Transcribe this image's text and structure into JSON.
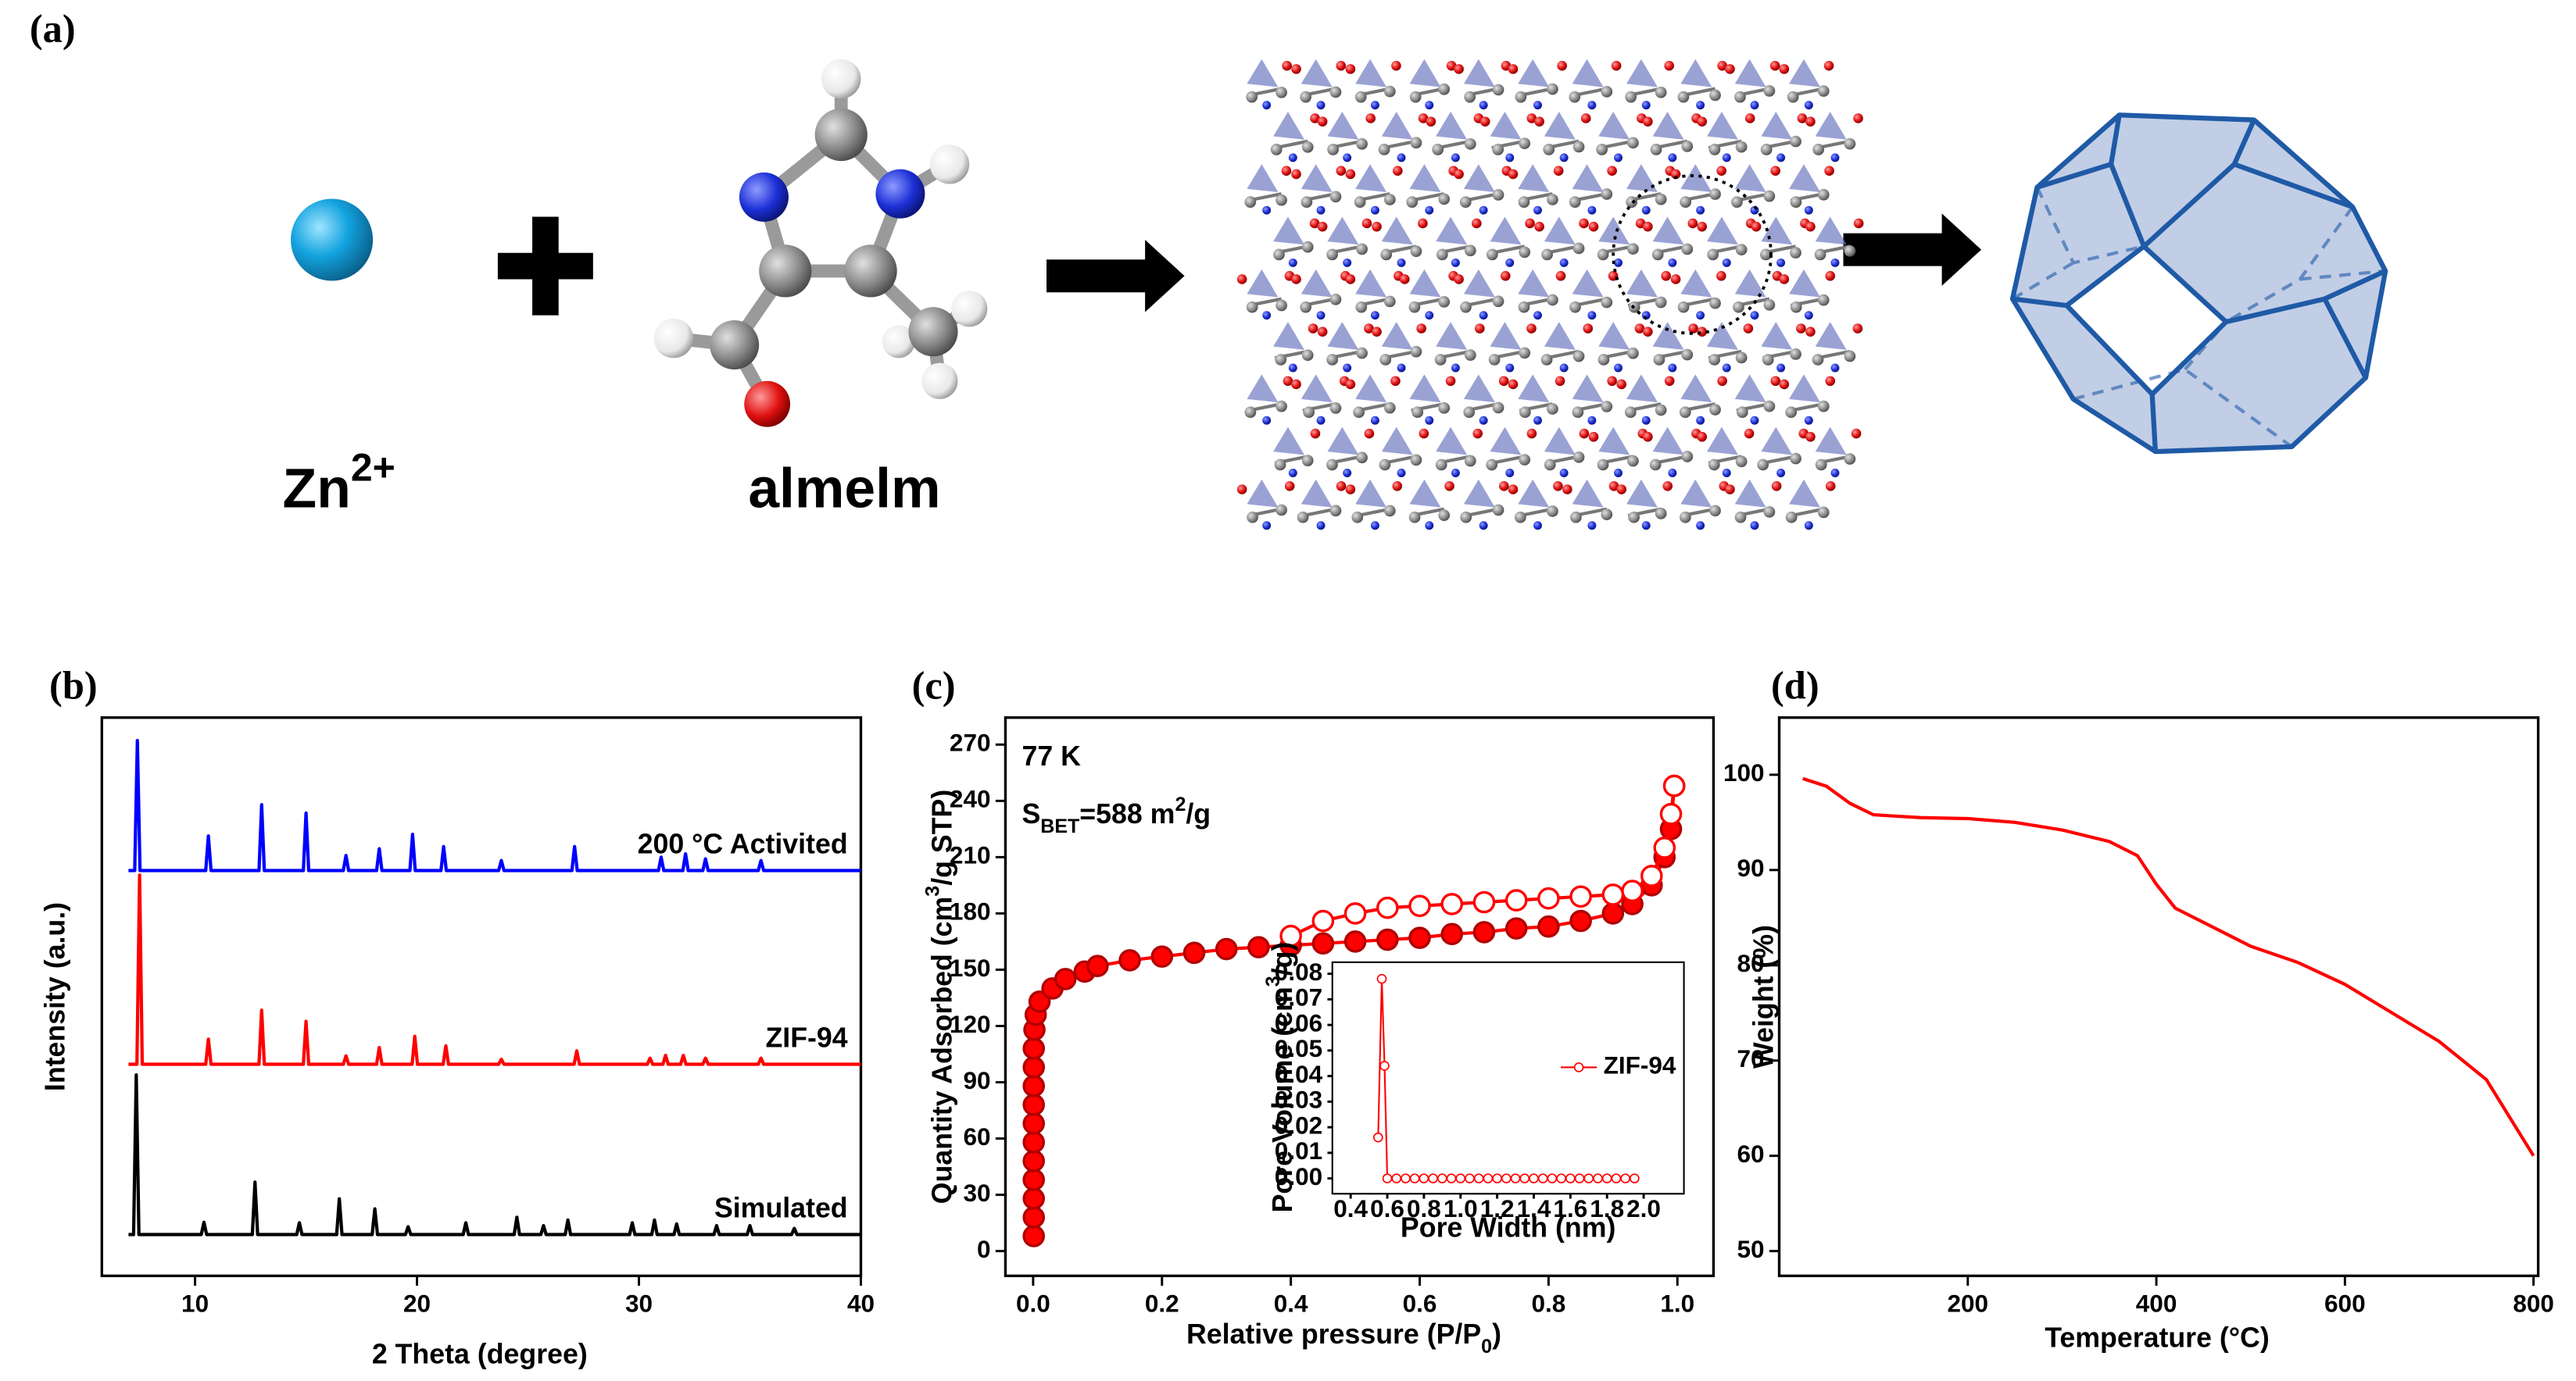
{
  "panel_a": {
    "label": "(a)",
    "metal": [
      "Zn",
      {
        "text": "2+",
        "shift": "super"
      }
    ],
    "ligand": "almelm"
  },
  "chart_data": [
    {
      "type": "line",
      "label": "(b)",
      "x_label": "2 Theta (degree)",
      "y_label": "Intensity (a.u.)",
      "xlim": [
        5.8,
        40
      ],
      "xticks": [
        10,
        20,
        30,
        40
      ],
      "ylim": [
        0,
        100
      ],
      "series": [
        {
          "name": "200 °C Activited",
          "color": "#0000ff",
          "x": [
            7,
            7.28,
            7.4,
            7.52,
            10.48,
            10.6,
            10.72,
            12.88,
            13,
            13.12,
            14.88,
            15,
            15.12,
            16.68,
            16.8,
            16.92,
            18.18,
            18.3,
            18.42,
            19.68,
            19.8,
            19.92,
            21.08,
            21.2,
            21.32,
            23.68,
            23.8,
            23.92,
            26.98,
            27.1,
            27.22,
            30.88,
            31,
            31.12,
            31.98,
            32.1,
            32.22,
            32.88,
            33,
            33.12,
            35.38,
            35.5,
            35.62,
            40
          ],
          "values": [
            72.6,
            72.6,
            95.9,
            72.6,
            72.6,
            78.8,
            72.6,
            72.6,
            84.4,
            72.6,
            72.6,
            82.9,
            72.6,
            72.6,
            75.3,
            72.6,
            72.6,
            76.5,
            72.6,
            72.6,
            79.1,
            72.6,
            72.6,
            76.9,
            72.6,
            72.6,
            74.4,
            72.6,
            72.6,
            76.9,
            72.6,
            72.6,
            75,
            72.6,
            72.6,
            75.6,
            72.6,
            72.6,
            74.7,
            72.6,
            72.6,
            74.4,
            72.6,
            72.6
          ]
        },
        {
          "name": "ZIF-94",
          "color": "#ff0000",
          "x": [
            7,
            7.38,
            7.5,
            7.62,
            10.48,
            10.6,
            10.72,
            12.88,
            13,
            13.12,
            14.88,
            15,
            15.12,
            16.68,
            16.8,
            16.92,
            18.18,
            18.3,
            18.42,
            19.78,
            19.9,
            20.02,
            21.18,
            21.3,
            21.42,
            23.68,
            23.8,
            23.92,
            27.08,
            27.2,
            27.32,
            30.38,
            30.5,
            30.62,
            31.08,
            31.2,
            31.32,
            31.88,
            32,
            32.12,
            32.88,
            33,
            33.12,
            35.38,
            35.5,
            35.62,
            40
          ],
          "values": [
            37.9,
            37.9,
            71.8,
            37.9,
            37.9,
            42.4,
            37.9,
            37.9,
            47.6,
            37.9,
            37.9,
            45.6,
            37.9,
            37.9,
            39.4,
            37.9,
            37.9,
            40.9,
            37.9,
            37.9,
            42.9,
            37.9,
            37.9,
            41.2,
            37.9,
            37.9,
            38.8,
            37.9,
            37.9,
            40.3,
            37.9,
            37.9,
            39,
            37.9,
            37.9,
            39.5,
            37.9,
            37.9,
            39.5,
            37.9,
            37.9,
            39,
            37.9,
            37.9,
            39,
            37.9,
            37.9
          ]
        },
        {
          "name": "Simulated",
          "color": "#000000",
          "x": [
            7,
            7.23,
            7.35,
            7.47,
            10.28,
            10.4,
            10.52,
            12.58,
            12.7,
            12.82,
            14.58,
            14.7,
            14.82,
            16.38,
            16.5,
            16.62,
            17.98,
            18.1,
            18.22,
            19.48,
            19.6,
            19.72,
            22.08,
            22.2,
            22.32,
            24.38,
            24.5,
            24.62,
            25.58,
            25.7,
            25.82,
            26.68,
            26.8,
            26.92,
            29.58,
            29.7,
            29.82,
            30.58,
            30.7,
            30.82,
            31.58,
            31.7,
            31.82,
            33.38,
            33.5,
            33.62,
            34.88,
            35,
            35.12,
            36.88,
            37,
            37.12,
            40
          ],
          "values": [
            7.4,
            7.4,
            36,
            7.4,
            7.4,
            9.6,
            7.4,
            7.4,
            16.8,
            7.4,
            7.4,
            9.5,
            7.4,
            7.4,
            13.8,
            7.4,
            7.4,
            12,
            7.4,
            7.4,
            8.8,
            7.4,
            7.4,
            9.5,
            7.4,
            7.4,
            10.5,
            7.4,
            7.4,
            9,
            7.4,
            7.4,
            10,
            7.4,
            7.4,
            9.5,
            7.4,
            7.4,
            10,
            7.4,
            7.4,
            9.3,
            7.4,
            7.4,
            9,
            7.4,
            7.4,
            9,
            7.4,
            7.4,
            8.5,
            7.4,
            7.4
          ]
        }
      ]
    },
    {
      "type": "line",
      "label": "(c)",
      "marker": "circle",
      "x_label": [
        "Relative pressure (P/P",
        {
          "text": "0",
          "shift": "sub"
        },
        ")"
      ],
      "y_label": [
        "Quantity Adsorbed (cm",
        {
          "text": "3",
          "shift": "super"
        },
        "/g STP)"
      ],
      "annotations": [
        [
          "77 K"
        ],
        [
          "S",
          {
            "text": "BET",
            "shift": "sub"
          },
          "=588 m",
          {
            "text": "2",
            "shift": "super"
          },
          "/g"
        ]
      ],
      "xlim": [
        -0.043,
        1.056
      ],
      "xticks": [
        {
          "value": 0,
          "label": "0.0"
        },
        0.2,
        0.4,
        0.6,
        0.8,
        {
          "value": 1,
          "label": "1.0"
        }
      ],
      "ylim": [
        -13.2,
        284.4
      ],
      "yticks": [
        0,
        30,
        60,
        90,
        120,
        150,
        180,
        210,
        240,
        270
      ],
      "series": [
        {
          "color": "#ff0000",
          "filled": true,
          "x": [
            0.001,
            0.001,
            0.001,
            0.001,
            0.001,
            0.001,
            0.001,
            0.001,
            0.001,
            0.001,
            0.001,
            0.002,
            0.004,
            0.01,
            0.03,
            0.05,
            0.08,
            0.1,
            0.15,
            0.2,
            0.25,
            0.3,
            0.35,
            0.4,
            0.45,
            0.5,
            0.55,
            0.6,
            0.65,
            0.7,
            0.75,
            0.8,
            0.85,
            0.9,
            0.93,
            0.96,
            0.98,
            0.99,
            0.995
          ],
          "values": [
            8,
            18,
            28,
            38,
            48,
            58,
            68,
            78,
            88,
            98,
            108,
            118,
            126,
            133,
            140,
            145,
            149,
            152,
            155,
            157,
            159,
            161,
            162,
            163,
            164,
            165,
            166,
            167,
            169,
            170,
            172,
            173,
            176,
            180,
            185,
            195,
            210,
            225,
            248
          ]
        },
        {
          "color": "#ff0000",
          "filled": false,
          "x": [
            0.995,
            0.99,
            0.98,
            0.96,
            0.93,
            0.9,
            0.85,
            0.8,
            0.75,
            0.7,
            0.65,
            0.6,
            0.55,
            0.5,
            0.45,
            0.4
          ],
          "values": [
            248,
            233,
            215,
            200,
            192,
            190,
            189,
            188,
            187,
            186,
            185,
            184,
            183,
            180,
            176,
            168
          ]
        }
      ]
    },
    {
      "type": "line",
      "marker": "circle",
      "legend": "right",
      "x_label": "Pore Width (nm)",
      "y_label": [
        "Pore Volume (cm",
        {
          "text": "3",
          "shift": "super"
        },
        "/g)"
      ],
      "xlim": [
        0.3,
        2.22
      ],
      "xticks": [
        0.4,
        0.6,
        0.8,
        {
          "value": 1,
          "label": "1.0"
        },
        1.2,
        1.4,
        1.6,
        1.8,
        {
          "value": 2,
          "label": "2.0"
        }
      ],
      "ylim": [
        -0.006,
        0.0845
      ],
      "yticks": [
        {
          "value": 0,
          "label": "0.00"
        },
        0.01,
        0.02,
        0.03,
        0.04,
        0.05,
        0.06,
        0.07,
        0.08
      ],
      "series": [
        {
          "name": "ZIF-94",
          "color": "#ff0000",
          "filled": false,
          "x": [
            0.55,
            0.57,
            0.585,
            0.6,
            0.65,
            0.7,
            0.75,
            0.8,
            0.85,
            0.9,
            0.95,
            1,
            1.05,
            1.1,
            1.15,
            1.2,
            1.25,
            1.3,
            1.35,
            1.4,
            1.45,
            1.5,
            1.55,
            1.6,
            1.65,
            1.7,
            1.75,
            1.8,
            1.85,
            1.9,
            1.95
          ],
          "values": [
            0.016,
            0.078,
            0.044,
            0,
            0,
            0,
            0,
            0,
            0,
            0,
            0,
            0,
            0,
            0,
            0,
            0,
            0,
            0,
            0,
            0,
            0,
            0,
            0,
            0,
            0,
            0,
            0,
            0,
            0,
            0,
            0
          ]
        }
      ]
    },
    {
      "type": "line",
      "label": "(d)",
      "x_label": "Temperature (°C)",
      "y_label": "Weight (%)",
      "xlim": [
        0,
        805
      ],
      "xticks": [
        200,
        400,
        600,
        800
      ],
      "ylim": [
        47.4,
        106
      ],
      "yticks": [
        50,
        60,
        70,
        80,
        90,
        100
      ],
      "series": [
        {
          "color": "#ff0000",
          "x": [
            25,
            50,
            75,
            100,
            150,
            200,
            250,
            300,
            350,
            380,
            400,
            420,
            450,
            500,
            550,
            600,
            650,
            700,
            750,
            800
          ],
          "values": [
            99.6,
            98.8,
            97,
            95.8,
            95.5,
            95.4,
            95,
            94.2,
            93,
            91.5,
            88.5,
            86,
            84.5,
            82,
            80.3,
            78,
            75,
            72,
            68,
            60
          ]
        }
      ]
    }
  ]
}
